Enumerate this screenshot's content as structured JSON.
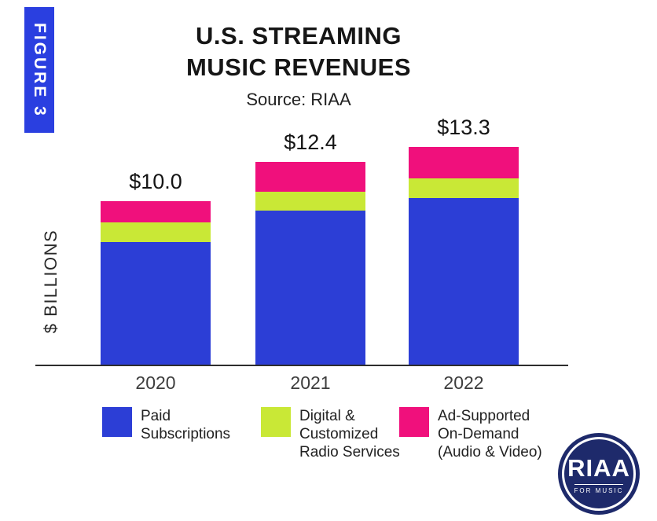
{
  "figure_label": "FIGURE 3",
  "title": {
    "line1": "U.S. STREAMING",
    "line2": "MUSIC REVENUES",
    "source": "Source: RIAA"
  },
  "y_axis_label": "$ BILLIONS",
  "colors": {
    "blue": "#2c3ed6",
    "green": "#c9e836",
    "pink": "#f0107c",
    "figure_box": "#2a3fe0",
    "logo_navy": "#1e2a6b"
  },
  "chart_data": {
    "type": "bar",
    "stacked": true,
    "title": "U.S. STREAMING MUSIC REVENUES",
    "subtitle": "Source: RIAA",
    "ylabel": "$ BILLIONS",
    "ylim": [
      0,
      14
    ],
    "categories": [
      "2020",
      "2021",
      "2022"
    ],
    "series": [
      {
        "name": "Paid Subscriptions",
        "color_key": "blue",
        "values": [
          7.5,
          9.4,
          10.2
        ]
      },
      {
        "name": "Digital & Customized Radio Services",
        "color_key": "green",
        "values": [
          1.2,
          1.2,
          1.2
        ]
      },
      {
        "name": "Ad-Supported On-Demand (Audio & Video)",
        "color_key": "pink",
        "values": [
          1.3,
          1.8,
          1.9
        ]
      }
    ],
    "totals": [
      "$10.0",
      "$12.4",
      "$13.3"
    ],
    "legend_position": "bottom",
    "grid": false
  },
  "legend": [
    {
      "color_key": "blue",
      "label_lines": [
        "Paid",
        "Subscriptions"
      ]
    },
    {
      "color_key": "green",
      "label_lines": [
        "Digital &",
        "Customized",
        "Radio Services"
      ]
    },
    {
      "color_key": "pink",
      "label_lines": [
        "Ad-Supported",
        "On-Demand",
        "(Audio & Video)"
      ]
    }
  ],
  "logo": {
    "text": "RIAA",
    "subtext": "FOR MUSIC"
  }
}
